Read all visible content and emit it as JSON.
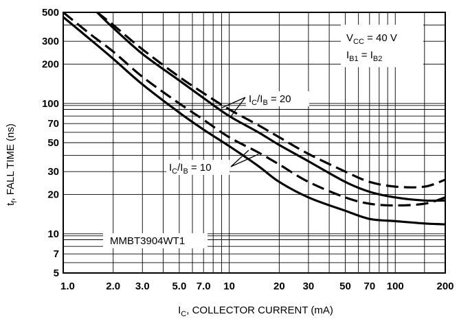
{
  "chart_data": {
    "type": "line",
    "xscale": "log",
    "yscale": "log",
    "xlim": [
      1,
      200
    ],
    "ylim": [
      5,
      500
    ],
    "grid": true,
    "xticks": [
      1.0,
      2.0,
      3.0,
      5.0,
      7.0,
      10,
      20,
      30,
      50,
      70,
      100,
      200
    ],
    "xtick_labels": [
      "1.0",
      "2.0",
      "3.0",
      "5.0",
      "7.0",
      "10",
      "20",
      "30",
      "50",
      "70",
      "100",
      "200"
    ],
    "yticks": [
      5,
      7,
      10,
      20,
      30,
      50,
      70,
      100,
      200,
      300,
      500
    ],
    "ytick_labels": [
      "5",
      "7",
      "10",
      "20",
      "30",
      "50",
      "70",
      "100",
      "200",
      "300",
      "500"
    ],
    "ylabel_main": "t",
    "ylabel_sub": "f",
    "ylabel_rest": ", FALL TIME (ns)",
    "xlabel_main": "I",
    "xlabel_sub": "C",
    "xlabel_rest": ", COLLECTOR CURRENT (mA)",
    "annotations": {
      "conditions": {
        "vcc_main": "V",
        "vcc_sub": "CC",
        "vcc_rest": " = 40 V",
        "ib_main1": "I",
        "ib_sub1": "B1",
        "ib_eq": " = I",
        "ib_sub2": "B2"
      },
      "ratio20": {
        "main1": "I",
        "sub1": "C",
        "slash": "/I",
        "sub2": "B",
        "rest": " = 20"
      },
      "ratio10": {
        "main1": "I",
        "sub1": "C",
        "slash": "/I",
        "sub2": "B",
        "rest": " = 10"
      },
      "part": "MMBT3904WT1"
    },
    "series": [
      {
        "ratio": 20,
        "style": "solid",
        "x": [
          1.6,
          2,
          3,
          5,
          7,
          10,
          15,
          20,
          30,
          50,
          70,
          100,
          150,
          200
        ],
        "y": [
          500,
          380,
          240,
          150,
          110,
          80,
          60,
          48,
          36,
          25,
          21,
          19,
          18,
          18
        ]
      },
      {
        "ratio": 20,
        "style": "dashed",
        "x": [
          1.6,
          2,
          3,
          5,
          7,
          10,
          15,
          20,
          30,
          50,
          70,
          100,
          150,
          200
        ],
        "y": [
          500,
          400,
          260,
          160,
          120,
          90,
          68,
          55,
          41,
          30,
          25,
          23,
          23,
          26
        ]
      },
      {
        "ratio": 10,
        "style": "solid",
        "x": [
          1,
          1.5,
          2,
          3,
          5,
          7,
          10,
          15,
          20,
          30,
          50,
          70,
          100,
          150,
          200
        ],
        "y": [
          460,
          300,
          220,
          140,
          85,
          63,
          47,
          33,
          25,
          19,
          15,
          13,
          12.5,
          12,
          11.8
        ]
      },
      {
        "ratio": 10,
        "style": "dashed",
        "x": [
          1,
          1.5,
          2,
          3,
          5,
          7,
          10,
          15,
          20,
          30,
          50,
          70,
          100,
          150,
          200
        ],
        "y": [
          500,
          330,
          250,
          160,
          100,
          75,
          55,
          42,
          34,
          25,
          19,
          17,
          16.5,
          17,
          19
        ]
      }
    ]
  }
}
